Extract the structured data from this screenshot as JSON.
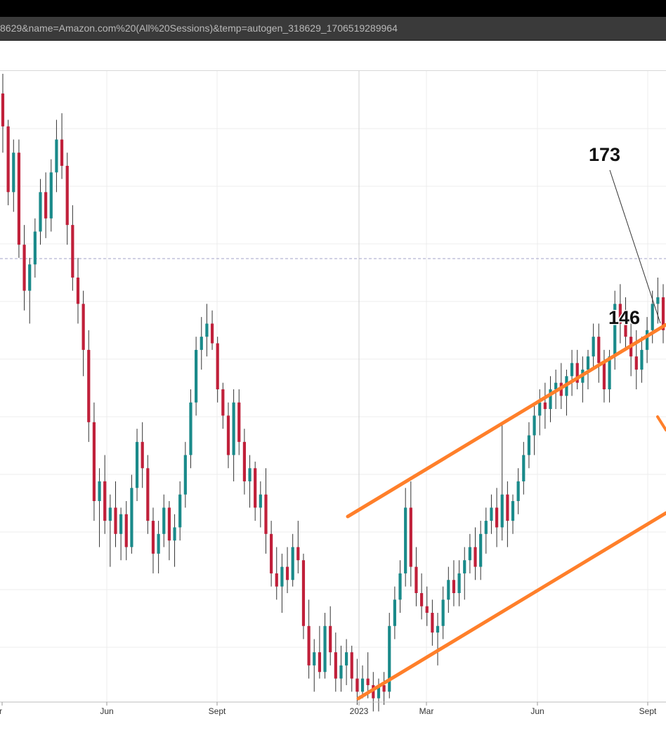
{
  "browser": {
    "address_bar": "8629&name=Amazon.com%20(All%20Sessions)&temp=autogen_318629_1706519289964"
  },
  "chart_data": {
    "type": "candlestick",
    "series_label": "Amazon.com (All Sessions)",
    "x_tick_labels": [
      "r",
      "Jun",
      "Sept",
      "2023",
      "Mar",
      "Jun",
      "Sept"
    ],
    "annotations": [
      {
        "text": "173"
      },
      {
        "text": "146"
      }
    ],
    "colors": {
      "up": "#1a8a8a",
      "down": "#c0203a",
      "channel": "#ff7f2a",
      "reference_line": "#a0a0c8",
      "grid": "#ececec"
    },
    "grid": true,
    "candles": [
      [
        175,
        178,
        166,
        170
      ],
      [
        170,
        171,
        158,
        160
      ],
      [
        160,
        168,
        157,
        166
      ],
      [
        166,
        168,
        150,
        152
      ],
      [
        152,
        155,
        142,
        145
      ],
      [
        145,
        150,
        140,
        149
      ],
      [
        149,
        156,
        147,
        154
      ],
      [
        154,
        162,
        152,
        160
      ],
      [
        160,
        163,
        153,
        156
      ],
      [
        156,
        165,
        154,
        163
      ],
      [
        163,
        171,
        160,
        168
      ],
      [
        168,
        172,
        162,
        164
      ],
      [
        164,
        166,
        152,
        155
      ],
      [
        155,
        158,
        145,
        147
      ],
      [
        147,
        150,
        140,
        143
      ],
      [
        143,
        145,
        132,
        136
      ],
      [
        136,
        139,
        122,
        125
      ],
      [
        125,
        128,
        110,
        113
      ],
      [
        113,
        118,
        106,
        116
      ],
      [
        116,
        120,
        108,
        110
      ],
      [
        110,
        114,
        103,
        112
      ],
      [
        112,
        116,
        106,
        108
      ],
      [
        108,
        112,
        104,
        111
      ],
      [
        111,
        113,
        104,
        106
      ],
      [
        106,
        117,
        105,
        115
      ],
      [
        115,
        124,
        113,
        122
      ],
      [
        122,
        125,
        115,
        118
      ],
      [
        118,
        120,
        108,
        110
      ],
      [
        110,
        112,
        102,
        105
      ],
      [
        105,
        110,
        102,
        108
      ],
      [
        108,
        114,
        106,
        112
      ],
      [
        112,
        113,
        104,
        107
      ],
      [
        107,
        111,
        103,
        109
      ],
      [
        109,
        116,
        107,
        114
      ],
      [
        114,
        122,
        112,
        120
      ],
      [
        120,
        130,
        118,
        128
      ],
      [
        128,
        138,
        126,
        136
      ],
      [
        136,
        141,
        133,
        138
      ],
      [
        138,
        143,
        135,
        140
      ],
      [
        140,
        142,
        136,
        137
      ],
      [
        137,
        138,
        128,
        130
      ],
      [
        130,
        131,
        124,
        126
      ],
      [
        126,
        128,
        118,
        120
      ],
      [
        120,
        130,
        116,
        128
      ],
      [
        128,
        130,
        120,
        122
      ],
      [
        122,
        124,
        114,
        116
      ],
      [
        116,
        120,
        112,
        118
      ],
      [
        118,
        119,
        110,
        112
      ],
      [
        112,
        116,
        109,
        114
      ],
      [
        114,
        118,
        105,
        108
      ],
      [
        108,
        110,
        100,
        102
      ],
      [
        102,
        106,
        98,
        100
      ],
      [
        100,
        105,
        96,
        103
      ],
      [
        103,
        106,
        99,
        101
      ],
      [
        101,
        108,
        100,
        106
      ],
      [
        106,
        110,
        102,
        104
      ],
      [
        104,
        105,
        92,
        94
      ],
      [
        94,
        98,
        86,
        88
      ],
      [
        88,
        92,
        84,
        90
      ],
      [
        90,
        94,
        86,
        87
      ],
      [
        87,
        96,
        86,
        94
      ],
      [
        94,
        97,
        88,
        90
      ],
      [
        90,
        93,
        84,
        86
      ],
      [
        86,
        91,
        84,
        88
      ],
      [
        88,
        92,
        85,
        90
      ],
      [
        90,
        91,
        84,
        86
      ],
      [
        86,
        89,
        82,
        84
      ],
      [
        84,
        88,
        83,
        86
      ],
      [
        86,
        90,
        83,
        85
      ],
      [
        85,
        87,
        81,
        83
      ],
      [
        83,
        86,
        81,
        85
      ],
      [
        85,
        87,
        82,
        84
      ],
      [
        84,
        96,
        83,
        94
      ],
      [
        94,
        100,
        92,
        98
      ],
      [
        98,
        104,
        96,
        102
      ],
      [
        102,
        115,
        100,
        112
      ],
      [
        112,
        116,
        100,
        103
      ],
      [
        103,
        106,
        97,
        99
      ],
      [
        99,
        102,
        95,
        97
      ],
      [
        97,
        100,
        94,
        96
      ],
      [
        96,
        98,
        91,
        93
      ],
      [
        93,
        96,
        88,
        94
      ],
      [
        94,
        100,
        92,
        98
      ],
      [
        98,
        103,
        96,
        101
      ],
      [
        101,
        104,
        97,
        99
      ],
      [
        99,
        104,
        97,
        102
      ],
      [
        102,
        106,
        98,
        104
      ],
      [
        104,
        108,
        102,
        106
      ],
      [
        106,
        109,
        101,
        103
      ],
      [
        103,
        110,
        101,
        108
      ],
      [
        108,
        112,
        105,
        110
      ],
      [
        110,
        114,
        108,
        112
      ],
      [
        112,
        115,
        106,
        109
      ],
      [
        109,
        125,
        107,
        114
      ],
      [
        114,
        116,
        106,
        110
      ],
      [
        110,
        114,
        108,
        113
      ],
      [
        113,
        118,
        111,
        116
      ],
      [
        116,
        122,
        114,
        120
      ],
      [
        120,
        125,
        118,
        123
      ],
      [
        123,
        128,
        120,
        126
      ],
      [
        126,
        130,
        123,
        128
      ],
      [
        128,
        131,
        124,
        127
      ],
      [
        127,
        132,
        125,
        130
      ],
      [
        130,
        133,
        127,
        131
      ],
      [
        131,
        134,
        127,
        129
      ],
      [
        129,
        133,
        126,
        132
      ],
      [
        132,
        136,
        129,
        134
      ],
      [
        134,
        136,
        130,
        131
      ],
      [
        131,
        135,
        128,
        133
      ],
      [
        133,
        136,
        130,
        135
      ],
      [
        135,
        140,
        133,
        138
      ],
      [
        138,
        140,
        131,
        134
      ],
      [
        134,
        136,
        128,
        130
      ],
      [
        130,
        136,
        128,
        135
      ],
      [
        135,
        145,
        133,
        143
      ],
      [
        143,
        146,
        137,
        140
      ],
      [
        140,
        144,
        136,
        138
      ],
      [
        138,
        141,
        132,
        135
      ],
      [
        135,
        139,
        130,
        133
      ],
      [
        133,
        138,
        131,
        136
      ],
      [
        136,
        141,
        134,
        139
      ],
      [
        139,
        145,
        137,
        143
      ],
      [
        143,
        147,
        140,
        144
      ],
      [
        144,
        146,
        137,
        139
      ]
    ]
  }
}
